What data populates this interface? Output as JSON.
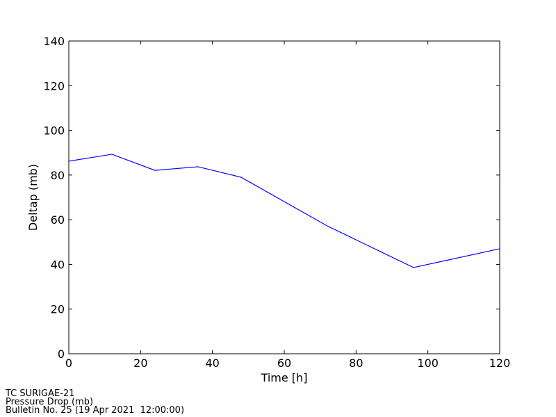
{
  "chart_data": {
    "type": "line",
    "x_label": "Time [h]",
    "y_label": "Deltap (mb)",
    "x": [
      0,
      12,
      24,
      36,
      48,
      72,
      96,
      120
    ],
    "series": [
      {
        "color": "#0000ff",
        "values": [
          86.2,
          89.3,
          82.1,
          83.7,
          79,
          57.2,
          38.6,
          47
        ]
      }
    ],
    "xlim": [
      0,
      120
    ],
    "xticks": [
      0,
      20,
      40,
      60,
      80,
      100,
      120
    ],
    "ylim": [
      0,
      140
    ],
    "yticks": [
      0,
      20,
      40,
      60,
      80,
      100,
      120,
      140
    ],
    "grid": false
  },
  "footer": [
    "TC SURIGAE-21",
    "Pressure Drop (mb)",
    "Bulletin No. 25 (19 Apr 2021  12:00:00)"
  ]
}
